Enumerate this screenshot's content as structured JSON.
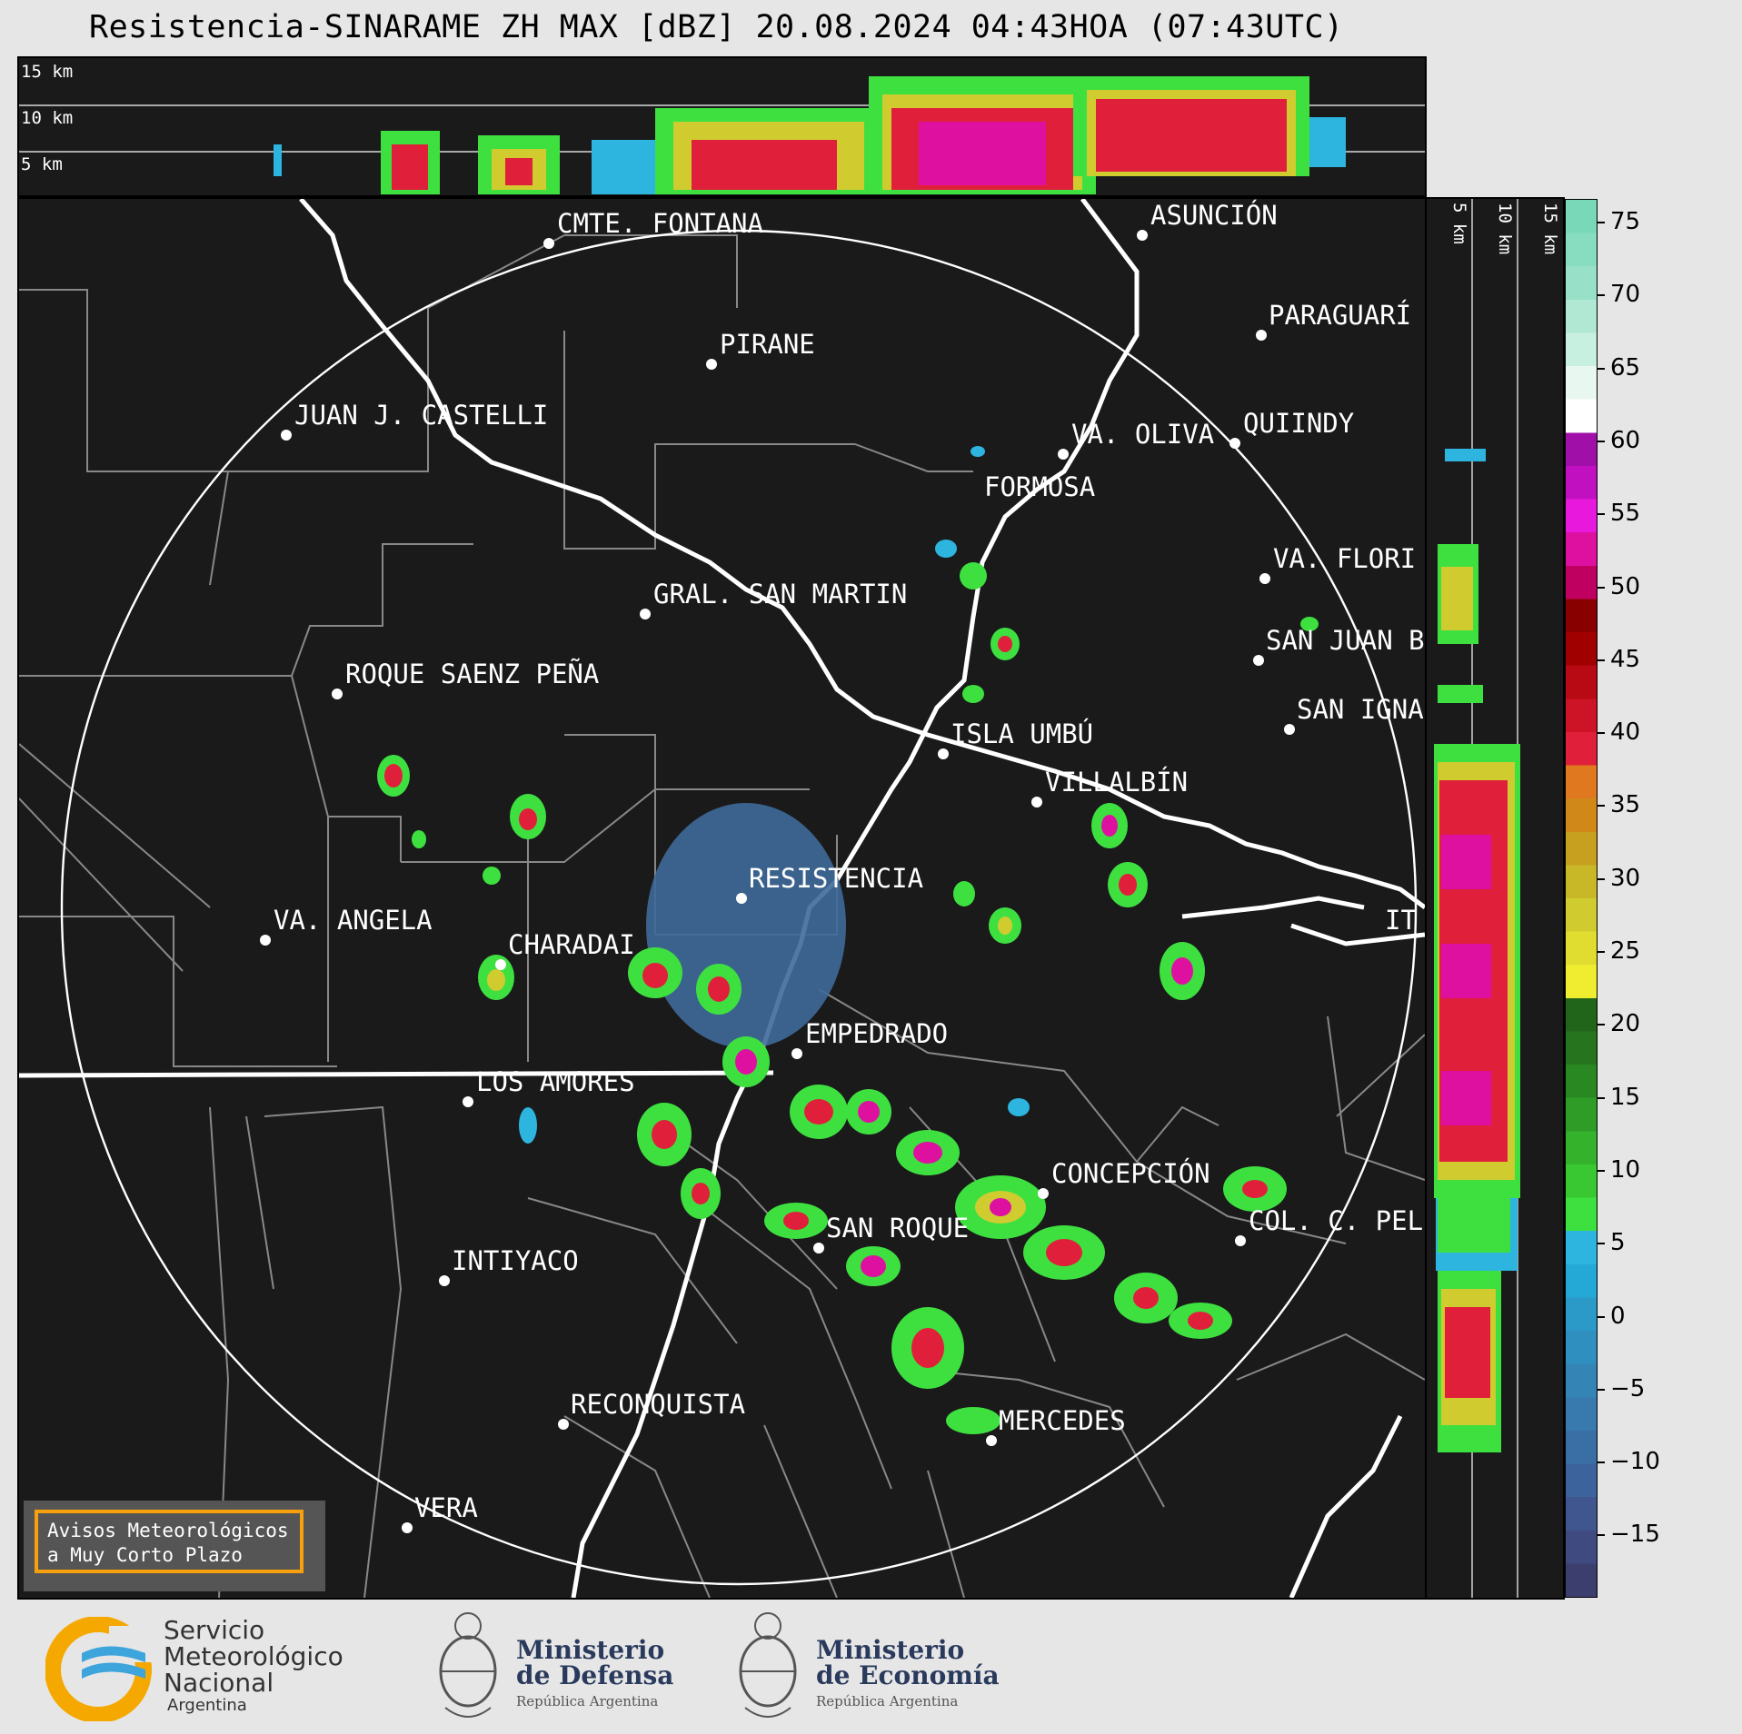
{
  "title": "Resistencia-SINARAME ZH MAX [dBZ] 20.08.2024 04:43HOA (07:43UTC)",
  "top_strip": {
    "height_labels": [
      "15 km",
      "10 km",
      "5 km"
    ]
  },
  "right_strip": {
    "height_labels": [
      "5 km",
      "10 km",
      "15 km"
    ]
  },
  "cities": [
    {
      "name": "CMTE. FONTANA"
    },
    {
      "name": "ASUNCIÓN"
    },
    {
      "name": "PIRANE"
    },
    {
      "name": "PARAGUARÍ"
    },
    {
      "name": "JUAN J. CASTELLI"
    },
    {
      "name": "VA. OLIVA"
    },
    {
      "name": "QUIINDY"
    },
    {
      "name": "FORMOSA"
    },
    {
      "name": "VA. FLORI"
    },
    {
      "name": "GRAL. SAN MARTIN"
    },
    {
      "name": "SAN JUAN B"
    },
    {
      "name": "ROQUE SAENZ PEÑA"
    },
    {
      "name": "SAN IGNA"
    },
    {
      "name": "ISLA UMBÚ"
    },
    {
      "name": "VILLALBÍN"
    },
    {
      "name": "RESISTENCIA"
    },
    {
      "name": "VA. ANGELA"
    },
    {
      "name": "CHARADAI"
    },
    {
      "name": "IT"
    },
    {
      "name": "EMPEDRADO"
    },
    {
      "name": "LOS AMORES"
    },
    {
      "name": "CONCEPCIÓN"
    },
    {
      "name": "SAN ROQUE"
    },
    {
      "name": "COL. C. PEL"
    },
    {
      "name": "INTIYACO"
    },
    {
      "name": "RECONQUISTA"
    },
    {
      "name": "MERCEDES"
    },
    {
      "name": "VERA"
    }
  ],
  "colorbar": {
    "unit": "dBZ",
    "ticks": [
      "75",
      "70",
      "65",
      "60",
      "55",
      "50",
      "45",
      "40",
      "35",
      "30",
      "25",
      "20",
      "15",
      "10",
      "5",
      "0",
      "−5",
      "−10",
      "−15"
    ],
    "colors": [
      "#3c3f6e",
      "#3f4a80",
      "#3f568f",
      "#3c639c",
      "#3a6fa6",
      "#3879ae",
      "#3584b6",
      "#2f8fbe",
      "#2b9ac8",
      "#24a8d6",
      "#2db5e0",
      "#3ee040",
      "#39c832",
      "#34b22c",
      "#2f9c27",
      "#2a8822",
      "#26751e",
      "#21651a",
      "#f0ec30",
      "#e0dc30",
      "#d0cc30",
      "#c8b828",
      "#c8a020",
      "#d08818",
      "#e07820",
      "#e0203a",
      "#cc1426",
      "#b80a14",
      "#a00000",
      "#880000",
      "#c00060",
      "#dd10a0",
      "#e818dc",
      "#c010c0",
      "#a010a8",
      "#ffffff",
      "#e8f8f0",
      "#c8f0e0",
      "#b0e8d4",
      "#98e0c8",
      "#88dcc0",
      "#78d8b8"
    ]
  },
  "warning_box": {
    "line1": "Avisos Meteorológicos",
    "line2": "a Muy Corto Plazo"
  },
  "logos": {
    "smn": {
      "line1": "Servicio",
      "line2": "Meteorológico",
      "line3": "Nacional",
      "line4": "Argentina"
    },
    "defensa": {
      "line1": "Ministerio",
      "line2": "de Defensa",
      "line3": "República Argentina"
    },
    "economia": {
      "line1": "Ministerio",
      "line2": "de Economía",
      "line3": "República Argentina"
    }
  }
}
